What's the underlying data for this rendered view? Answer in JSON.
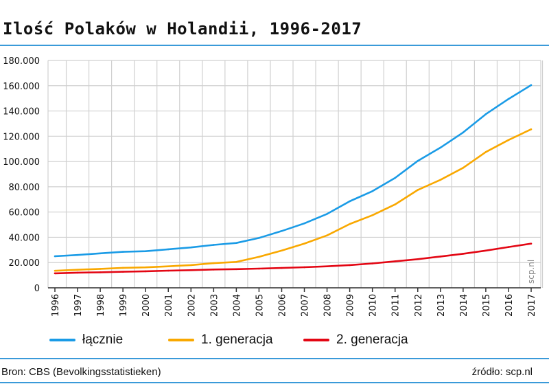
{
  "title": "Ilość Polaków w Holandii, 1996-2017",
  "footer": {
    "source": "Bron: CBS (Bevolkingsstatistieken)",
    "credit": "źródło: scp.nl"
  },
  "watermark": "scp.nl",
  "chart_data": {
    "type": "line",
    "title": "Ilość Polaków w Holandii, 1996-2017",
    "xlabel": "",
    "ylabel": "",
    "ylim": [
      0,
      180000
    ],
    "yticks": [
      0,
      20000,
      40000,
      60000,
      80000,
      100000,
      120000,
      140000,
      160000,
      180000
    ],
    "ytick_labels": [
      "0",
      "20.000",
      "40.000",
      "60.000",
      "80.000",
      "100.000",
      "120.000",
      "140.000",
      "160.000",
      "180.000"
    ],
    "x": [
      "1996",
      "1997",
      "1998",
      "1999",
      "2000",
      "2001",
      "2002",
      "2003",
      "2004",
      "2005",
      "2006",
      "2007",
      "2008",
      "2009",
      "2010",
      "2011",
      "2012",
      "2013",
      "2014",
      "2015",
      "2016",
      "2017"
    ],
    "grid": true,
    "legend": "bottom",
    "series": [
      {
        "name": "łącznie",
        "color": "#1a9be6",
        "values": [
          25000,
          26000,
          27300,
          28500,
          29000,
          30500,
          32000,
          34000,
          35500,
          39500,
          45000,
          51000,
          58500,
          68500,
          76500,
          87000,
          100500,
          111000,
          123000,
          137500,
          149500,
          160500
        ]
      },
      {
        "name": "1. generacja",
        "color": "#f9a800",
        "values": [
          13500,
          14300,
          15000,
          15800,
          16200,
          17000,
          18000,
          19500,
          20500,
          24500,
          29500,
          35000,
          41500,
          50500,
          57500,
          66000,
          77500,
          85500,
          95000,
          107500,
          117000,
          125500
        ]
      },
      {
        "name": "2. generacja",
        "color": "#e30613",
        "values": [
          11500,
          12000,
          12300,
          12700,
          13100,
          13600,
          14000,
          14500,
          14800,
          15200,
          15700,
          16300,
          17000,
          18000,
          19300,
          21000,
          22700,
          24800,
          27000,
          29500,
          32300,
          35000
        ]
      }
    ]
  }
}
